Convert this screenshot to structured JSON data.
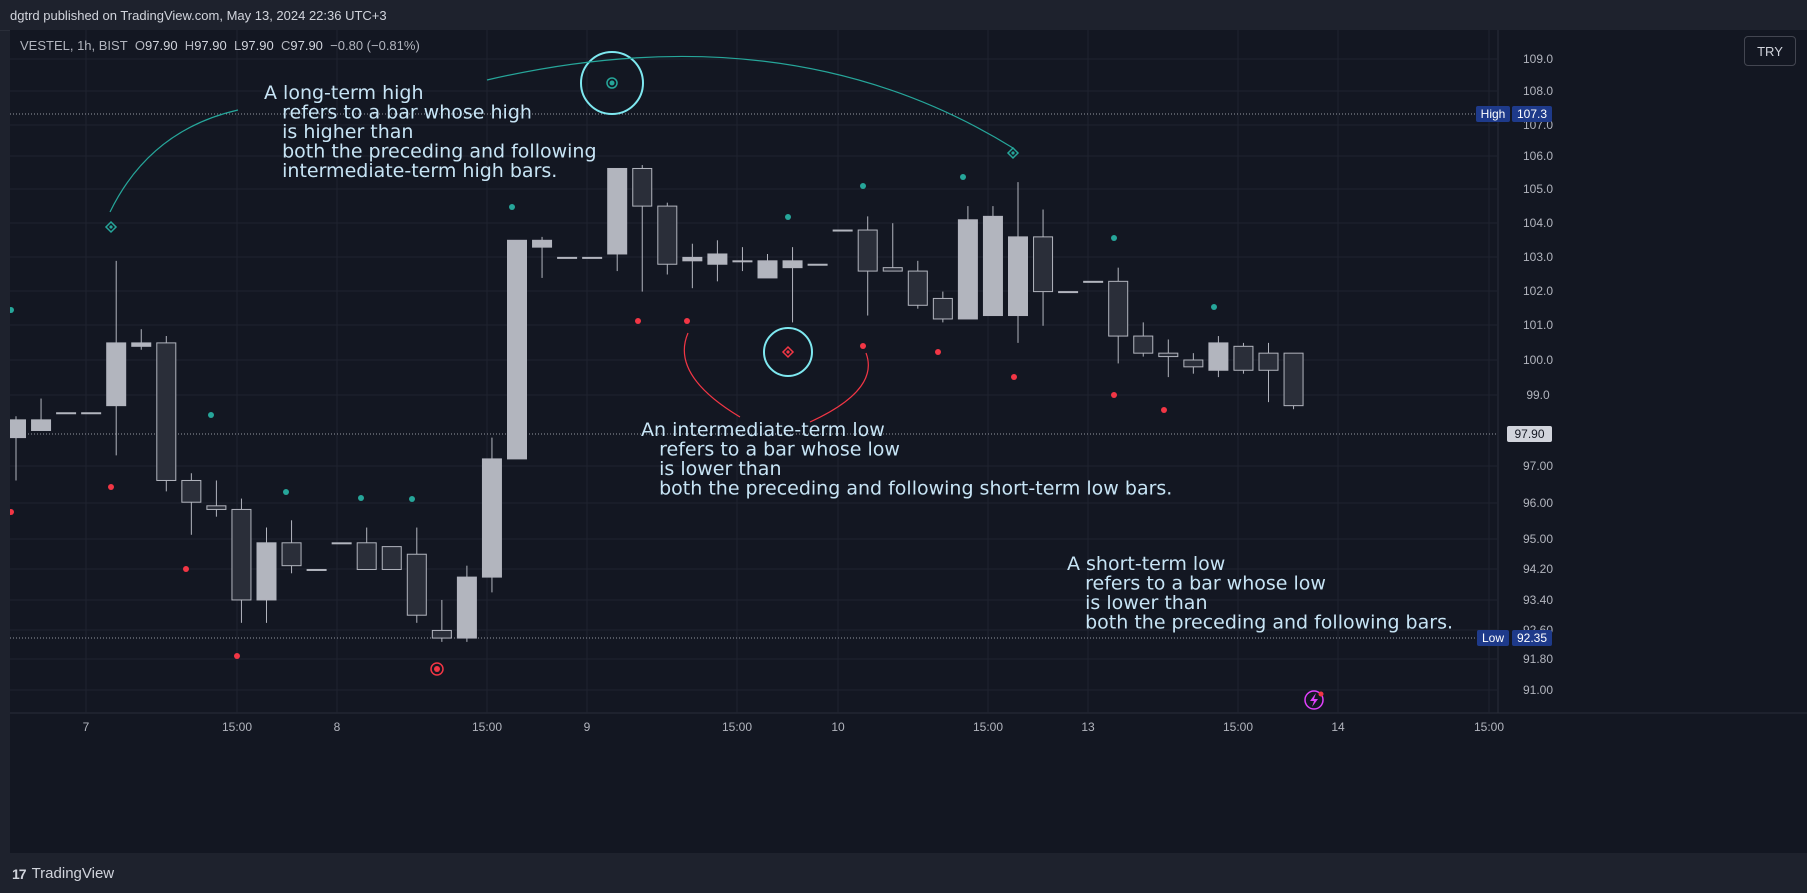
{
  "publisher": "dgtrd published on TradingView.com, May 13, 2024 22:36 UTC+3",
  "legend": {
    "symbol": "VESTEL, 1h, BIST",
    "o_label": "O",
    "o": "97.90",
    "h_label": "H",
    "h": "97.90",
    "l_label": "L",
    "l": "97.90",
    "c_label": "C",
    "c": "97.90",
    "change": "−0.80 (−0.81%)"
  },
  "currency_button": "TRY",
  "footer_brand": "TradingView",
  "colors": {
    "background": "#131722",
    "candle_up": "#b2b5be",
    "candle_down": "#2a2e39",
    "wick": "#b2b5be",
    "teal": "#26a69a",
    "red": "#f23645",
    "circle": "#7ee8f0",
    "label_blue": "#1e3a8a",
    "annotation_text": "#c7e4f5"
  },
  "chart_data": {
    "type": "candlestick",
    "y_ticks": [
      "109.0",
      "108.0",
      "107.0",
      "106.0",
      "105.0",
      "104.0",
      "103.0",
      "102.0",
      "101.0",
      "100.0",
      "99.0",
      "97.00",
      "96.00",
      "95.00",
      "94.20",
      "93.40",
      "92.60",
      "91.80",
      "91.00"
    ],
    "x_ticks": [
      "7",
      "15:00",
      "8",
      "15:00",
      "9",
      "15:00",
      "10",
      "15:00",
      "13",
      "15:00",
      "14",
      "15:00"
    ],
    "candles": [
      [
        97.8,
        98.4,
        96.6,
        98.3
      ],
      [
        98.0,
        98.9,
        98.0,
        98.3
      ],
      [
        98.5,
        98.5,
        98.5,
        98.5
      ],
      [
        98.5,
        98.5,
        98.5,
        98.5
      ],
      [
        98.7,
        102.9,
        97.3,
        100.5
      ],
      [
        100.4,
        100.9,
        100.3,
        100.5
      ],
      [
        100.5,
        100.7,
        96.3,
        96.6
      ],
      [
        96.6,
        96.8,
        95.1,
        96.0
      ],
      [
        95.9,
        96.6,
        95.6,
        95.8
      ],
      [
        95.8,
        96.1,
        92.8,
        93.4
      ],
      [
        93.4,
        95.3,
        92.8,
        94.9
      ],
      [
        94.9,
        95.5,
        94.1,
        94.3
      ],
      [
        94.2,
        94.2,
        94.2,
        94.2
      ],
      [
        94.9,
        94.9,
        94.9,
        94.9
      ],
      [
        94.9,
        95.3,
        94.2,
        94.2
      ],
      [
        94.8,
        94.8,
        94.2,
        94.2
      ],
      [
        94.6,
        95.3,
        92.8,
        93.0
      ],
      [
        92.6,
        93.4,
        92.3,
        92.4
      ],
      [
        92.4,
        94.3,
        92.3,
        94.0
      ],
      [
        94.0,
        97.8,
        93.6,
        97.2
      ],
      [
        97.2,
        103.5,
        97.2,
        103.5
      ],
      [
        103.3,
        103.6,
        102.4,
        103.5
      ],
      [
        103.0,
        103.0,
        103.0,
        103.0
      ],
      [
        103.0,
        103.0,
        103.0,
        103.0
      ],
      [
        103.1,
        105.6,
        102.6,
        105.6
      ],
      [
        105.6,
        105.7,
        102.0,
        104.5
      ],
      [
        104.5,
        104.6,
        102.5,
        102.8
      ],
      [
        102.9,
        103.4,
        102.1,
        103.0
      ],
      [
        102.8,
        103.5,
        102.3,
        103.1
      ],
      [
        102.9,
        103.3,
        102.6,
        102.9
      ],
      [
        102.4,
        103.1,
        102.4,
        102.9
      ],
      [
        102.7,
        103.3,
        101.1,
        102.9
      ],
      [
        102.8,
        102.8,
        102.8,
        102.8
      ],
      [
        103.8,
        103.8,
        103.8,
        103.8
      ],
      [
        103.8,
        104.2,
        101.3,
        102.6
      ],
      [
        102.7,
        104.0,
        102.6,
        102.6
      ],
      [
        102.6,
        102.9,
        101.5,
        101.6
      ],
      [
        101.8,
        102.0,
        101.1,
        101.2
      ],
      [
        101.2,
        104.5,
        101.2,
        104.1
      ],
      [
        101.3,
        104.5,
        101.3,
        104.2
      ],
      [
        101.3,
        105.2,
        100.5,
        103.6
      ],
      [
        103.6,
        104.4,
        101.0,
        102.0
      ],
      [
        102.0,
        102.0,
        102.0,
        102.0
      ],
      [
        102.3,
        102.3,
        102.3,
        102.3
      ],
      [
        102.3,
        102.7,
        99.9,
        100.7
      ],
      [
        100.7,
        101.1,
        100.1,
        100.2
      ],
      [
        100.2,
        100.6,
        99.5,
        100.1
      ],
      [
        100.0,
        100.2,
        99.6,
        99.8
      ],
      [
        99.7,
        100.7,
        99.5,
        100.5
      ],
      [
        100.4,
        100.5,
        99.6,
        99.7
      ],
      [
        100.2,
        100.5,
        98.8,
        99.7
      ],
      [
        100.2,
        100.2,
        98.6,
        98.7
      ]
    ],
    "last_price_line_value": 97.9
  },
  "annotations": {
    "long_term_high": "A long-term high\n   refers to a bar whose high\n   is higher than\n   both the preceding and following\n   intermediate-term high bars.",
    "intermediate_low": "An intermediate-term low\n   refers to a bar whose low\n   is lower than\n   both the preceding and following short-term low bars.",
    "short_term_low": "A short-term low\n   refers to a bar whose low\n   is lower than\n   both the preceding and following bars."
  },
  "price_labels": {
    "high_label": "High",
    "high_value": "107.3",
    "low_label": "Low",
    "low_value": "92.35",
    "last_value": "97.90"
  }
}
